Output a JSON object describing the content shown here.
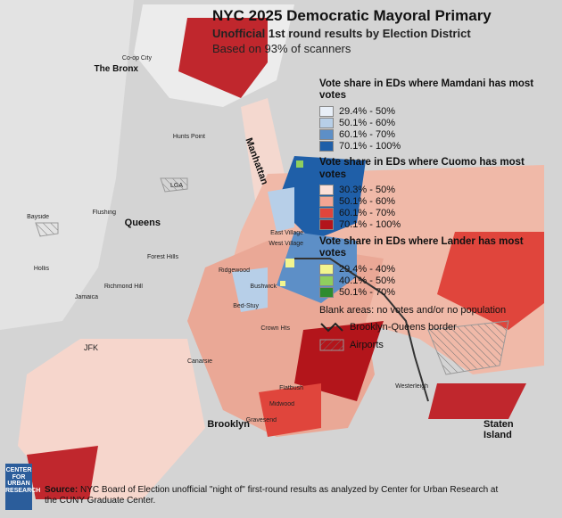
{
  "title": "NYC 2025 Democratic Mayoral Primary",
  "subtitle": "Unofficial 1st round results by Election District",
  "subtitle2": "Based on 93% of scanners",
  "legend": {
    "mamdani": {
      "heading": "Vote share in EDs where Mamdani has most votes",
      "color": "#1f5fa8",
      "bins": [
        {
          "label": "29.4% - 50%",
          "color": "#e8eff8"
        },
        {
          "label": "50.1% - 60%",
          "color": "#b7cfe8"
        },
        {
          "label": "60.1% - 70%",
          "color": "#5d8fc7"
        },
        {
          "label": "70.1% - 100%",
          "color": "#1f5fa8"
        }
      ]
    },
    "cuomo": {
      "heading": "Vote share in EDs where Cuomo has most votes",
      "color": "#c0272d",
      "bins": [
        {
          "label": "30.3% - 50%",
          "color": "#fbe0d8"
        },
        {
          "label": "50.1% - 60%",
          "color": "#f3a593"
        },
        {
          "label": "60.1% - 70%",
          "color": "#e0453c"
        },
        {
          "label": "70.1% - 100%",
          "color": "#b3151b"
        }
      ]
    },
    "lander": {
      "heading": "Vote share in EDs where Lander has most votes",
      "color": "#4d9a3a",
      "bins": [
        {
          "label": "29.4% - 40%",
          "color": "#f2f58f"
        },
        {
          "label": "40.1% - 50%",
          "color": "#8fcf5e"
        },
        {
          "label": "50.1% - 70%",
          "color": "#2e8b2e"
        }
      ]
    },
    "blank_note": "Blank areas: no votes and/or no population",
    "border_label": "Brooklyn-Queens border",
    "airports_label": "Airports"
  },
  "boroughs": {
    "queens": "Queens",
    "brooklyn": "Brooklyn",
    "manhattan": "Manhattan",
    "staten_island": "Staten Island",
    "bronx": "The Bronx"
  },
  "places": {
    "jfk": "JFK",
    "lga": "LGA",
    "ridgewood": "Ridgewood",
    "bushwick": "Bushwick",
    "crown_hts": "Crown Hts",
    "canarsie": "Canarsie",
    "flatbush": "Flatbush",
    "gravesend": "Gravesend",
    "midwood": "Midwood",
    "forest_hills": "Forest Hills",
    "richmond_hill": "Richmond Hill",
    "hollis": "Hollis",
    "flushing": "Flushing",
    "jamaica": "Jamaica",
    "bayside": "Bayside",
    "east_village": "East Village",
    "west_village": "West Village",
    "westerleigh": "Westerleigh",
    "co_op_city": "Co-op City",
    "hunts_point": "Hunts Point",
    "bed_stuy": "Bed-Stuy"
  },
  "source": {
    "prefix": "Source:",
    "text": "NYC Board of Election unofficial \"night of\" first-round results as analyzed by Center for Urban Research at the CUNY Graduate Center."
  },
  "logo_text": "CENTER FOR URBAN RESEARCH"
}
